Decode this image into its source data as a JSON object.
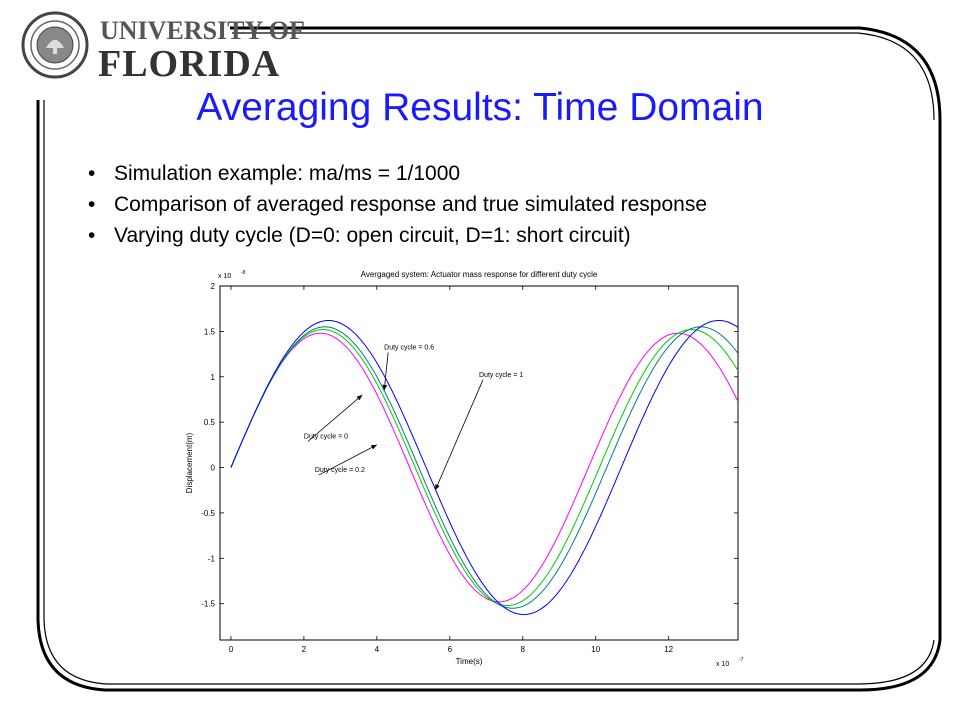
{
  "logo": {
    "line1": "UNIVERSITY OF",
    "line2": "FLORIDA",
    "seal_text": "UNIVERSITY OF FLORIDA 1853",
    "icon": "university-seal"
  },
  "title": "Averaging Results:  Time Domain",
  "bullets": [
    "Simulation example:  ma/ms = 1/1000",
    "Comparison of averaged response and true simulated response",
    "Varying duty cycle (D=0:  open circuit, D=1:  short circuit)"
  ],
  "bullet_glyph": "•",
  "colors": {
    "title": "#1a1aff",
    "frame": "#000000",
    "duty_0": "#ff00ff",
    "duty_0_2": "#00cc00",
    "duty_0_6": "#008080",
    "duty_1": "#0000ff"
  },
  "chart_data": {
    "type": "line",
    "title": "Avergaged system: Actuator mass response for different duty cycle",
    "xlabel": "Time(s)",
    "ylabel": "Displacement(m)",
    "x_multiplier": "x 10",
    "x_exponent": "-7",
    "y_multiplier": "x 10",
    "y_exponent": "-8",
    "xlim": [
      -0.3,
      13.9
    ],
    "ylim": [
      -1.9,
      2.0
    ],
    "xticks": [
      0,
      2,
      4,
      6,
      8,
      10,
      12
    ],
    "yticks": [
      -1.5,
      -1,
      -0.5,
      0,
      0.5,
      1,
      1.5,
      2
    ],
    "grid": false,
    "series": [
      {
        "name": "Duty cycle = 0",
        "color": "#ff00ff",
        "amplitude": 1.48,
        "period": 9.8
      },
      {
        "name": "Duty cycle = 0.2",
        "color": "#00cc00",
        "amplitude": 1.52,
        "period": 10.1
      },
      {
        "name": "Duty cycle = 0.6",
        "color": "#008080",
        "amplitude": 1.55,
        "period": 10.3
      },
      {
        "name": "Duty cycle = 1",
        "color": "#0000ff",
        "amplitude": 1.62,
        "period": 10.7
      }
    ],
    "annotations": [
      {
        "text": "Duty cycle = 0.6",
        "text_x": 4.2,
        "text_y": 1.3,
        "arrow_x": 4.2,
        "arrow_y": 0.85
      },
      {
        "text": "Duty cycle = 1",
        "text_x": 6.8,
        "text_y": 1.0,
        "arrow_x": 5.6,
        "arrow_y": -0.25
      },
      {
        "text": "Duty cycle = 0",
        "text_x": 2.0,
        "text_y": 0.32,
        "arrow_x": 3.6,
        "arrow_y": 0.8
      },
      {
        "text": "Duty cycle = 0.2",
        "text_x": 2.3,
        "text_y": -0.05,
        "arrow_x": 4.0,
        "arrow_y": 0.25
      }
    ]
  }
}
